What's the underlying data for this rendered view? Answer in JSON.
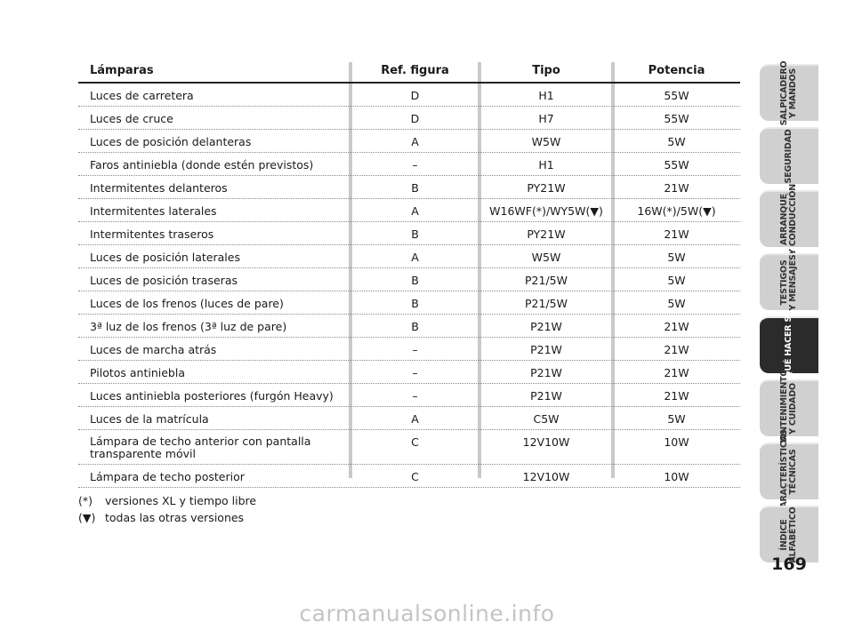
{
  "table": {
    "headers": [
      "Lámparas",
      "Ref. figura",
      "Tipo",
      "Potencia"
    ],
    "rows": [
      {
        "lamp": "Luces de carretera",
        "ref": "D",
        "tipo": "H1",
        "potencia": "55W"
      },
      {
        "lamp": "Luces de cruce",
        "ref": "D",
        "tipo": "H7",
        "potencia": "55W"
      },
      {
        "lamp": "Luces de posición delanteras",
        "ref": "A",
        "tipo": "W5W",
        "potencia": "5W"
      },
      {
        "lamp": "Faros antiniebla (donde estén previstos)",
        "ref": "–",
        "tipo": "H1",
        "potencia": "55W"
      },
      {
        "lamp": "Intermitentes delanteros",
        "ref": "B",
        "tipo": "PY21W",
        "potencia": "21W"
      },
      {
        "lamp": "Intermitentes laterales",
        "ref": "A",
        "tipo": "W16WF(*)/WY5W(▼)",
        "potencia": "16W(*)/5W(▼)"
      },
      {
        "lamp": "Intermitentes traseros",
        "ref": "B",
        "tipo": "PY21W",
        "potencia": "21W"
      },
      {
        "lamp": "Luces de posición laterales",
        "ref": "A",
        "tipo": "W5W",
        "potencia": "5W"
      },
      {
        "lamp": "Luces de posición traseras",
        "ref": "B",
        "tipo": "P21/5W",
        "potencia": "5W"
      },
      {
        "lamp": "Luces de los frenos (luces de pare)",
        "ref": "B",
        "tipo": "P21/5W",
        "potencia": "5W"
      },
      {
        "lamp": "3ª luz de los frenos (3ª luz de pare)",
        "ref": "B",
        "tipo": "P21W",
        "potencia": "21W"
      },
      {
        "lamp": "Luces de marcha atrás",
        "ref": "–",
        "tipo": "P21W",
        "potencia": "21W"
      },
      {
        "lamp": "Pilotos antiniebla",
        "ref": "–",
        "tipo": "P21W",
        "potencia": "21W"
      },
      {
        "lamp": "Luces antiniebla posteriores (furgón Heavy)",
        "ref": "–",
        "tipo": "P21W",
        "potencia": "21W"
      },
      {
        "lamp": "Luces de la matrícula",
        "ref": "A",
        "tipo": "C5W",
        "potencia": "5W"
      },
      {
        "lamp": "Lámpara de techo anterior con pantalla\ntransparente móvil",
        "ref": "C",
        "tipo": "12V10W",
        "potencia": "10W"
      },
      {
        "lamp": "Lámpara de techo posterior",
        "ref": "C",
        "tipo": "12V10W",
        "potencia": "10W"
      }
    ]
  },
  "notes": [
    {
      "symbol": "(*)",
      "text": "versiones XL y tiempo libre"
    },
    {
      "symbol": "(▼)",
      "text": "todas las otras versiones"
    }
  ],
  "tabs": [
    {
      "label": "SALPICADERO\nY MANDOS",
      "active": false
    },
    {
      "label": "SEGURIDAD",
      "active": false
    },
    {
      "label": "ARRANQUE\nY CONDUCCIÓN",
      "active": false
    },
    {
      "label": "TESTIGOS\nY MENSAJES",
      "active": false
    },
    {
      "label": "QUÉ HACER SI",
      "active": true
    },
    {
      "label": "MANTENIMIENTO\nY CUIDADO",
      "active": false
    },
    {
      "label": "CARACTERÍSTICAS\nTÉCNICAS",
      "active": false
    },
    {
      "label": "ÍNDICE\nALFABÉTICO",
      "active": false
    }
  ],
  "page_number": "169",
  "watermark": "carmanualsonline.info",
  "colors": {
    "active_tab": "#2b2b2b",
    "inactive_tab": "#d0d0d0",
    "separator": "#c9c9c9"
  }
}
